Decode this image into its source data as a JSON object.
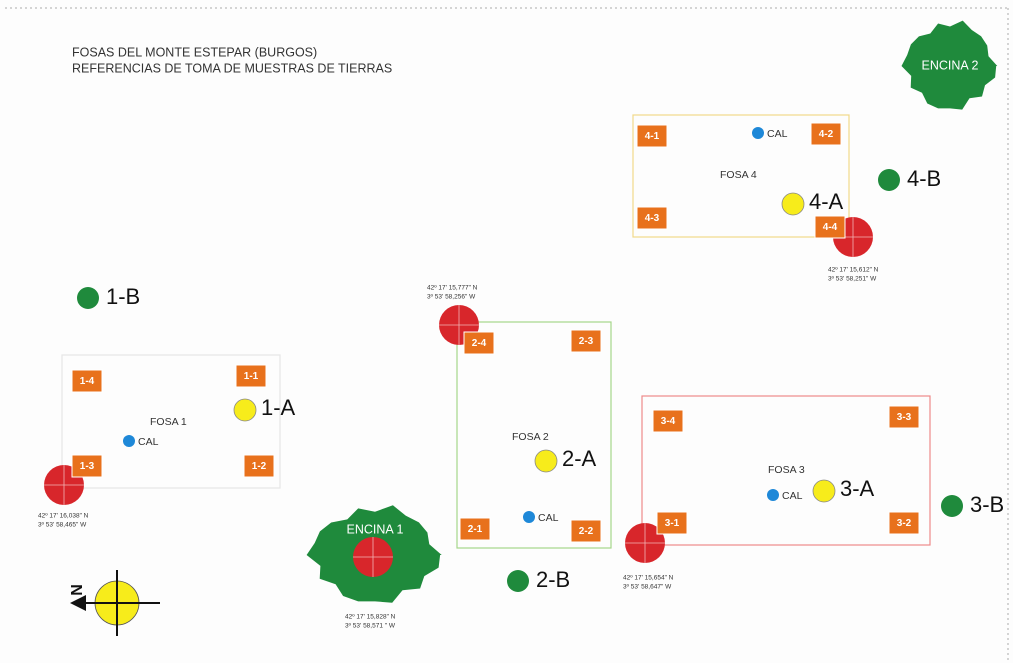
{
  "title": [
    "FOSAS DEL MONTE ESTEPAR (BURGOS)",
    "REFERENCIAS DE TOMA DE MUESTRAS DE TIERRAS"
  ],
  "fosas": [
    {
      "label": "FOSA 1",
      "samples": [
        "1-1",
        "1-2",
        "1-3",
        "1-4"
      ],
      "cal": "CAL",
      "point_a": "1-A",
      "point_b": "1-B",
      "coords": [
        "42º 17' 16,038\" N",
        "3º 53' 58,465\" W"
      ]
    },
    {
      "label": "FOSA 2",
      "samples": [
        "2-1",
        "2-2",
        "2-3",
        "2-4"
      ],
      "cal": "CAL",
      "point_a": "2-A",
      "point_b": "2-B",
      "coords": [
        "42º 17' 15,777\" N",
        "3º 53' 58,256\" W"
      ]
    },
    {
      "label": "FOSA 3",
      "samples": [
        "3-1",
        "3-2",
        "3-3",
        "3-4"
      ],
      "cal": "CAL",
      "point_a": "3-A",
      "point_b": "3-B",
      "coords": [
        "42º 17' 15,654\" N",
        "3º 53' 58,647\" W"
      ]
    },
    {
      "label": "FOSA 4",
      "samples": [
        "4-1",
        "4-2",
        "4-3",
        "4-4"
      ],
      "cal": "CAL",
      "point_a": "4-A",
      "point_b": "4-B",
      "coords": [
        "42º 17' 15,612\" N",
        "3º 53' 58,251\" W"
      ]
    }
  ],
  "encinas": [
    {
      "label": "ENCINA 1",
      "coords": [
        "42º 17' 15,828\" N",
        "3º 53' 58,571 \" W"
      ]
    },
    {
      "label": "ENCINA 2"
    }
  ],
  "compass": "N"
}
